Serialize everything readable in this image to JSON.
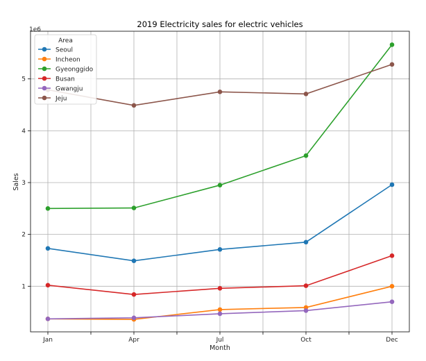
{
  "chart_data": {
    "type": "line",
    "title": "2019 Electricity sales for electric vehicles",
    "xlabel": "Month",
    "ylabel": "Sales",
    "offset_label": "1e6",
    "categories": [
      "Jan",
      "Apr",
      "Jul",
      "Oct",
      "Dec"
    ],
    "yticks": [
      1,
      2,
      3,
      4,
      5
    ],
    "ylim": [
      0.12,
      5.92
    ],
    "grid": true,
    "legend": {
      "title": "Area",
      "placement": "top-left"
    },
    "series": [
      {
        "name": "Seoul",
        "color": "#1f77b4",
        "values": [
          1.73,
          1.49,
          1.71,
          1.85,
          2.96
        ]
      },
      {
        "name": "Incheon",
        "color": "#ff7f0e",
        "values": [
          0.37,
          0.36,
          0.55,
          0.59,
          1.0
        ]
      },
      {
        "name": "Gyeonggido",
        "color": "#2ca02c",
        "values": [
          2.5,
          2.51,
          2.95,
          3.52,
          5.66
        ]
      },
      {
        "name": "Busan",
        "color": "#d62728",
        "values": [
          1.02,
          0.84,
          0.96,
          1.01,
          1.59
        ]
      },
      {
        "name": "Gwangju",
        "color": "#9467bd",
        "values": [
          0.37,
          0.39,
          0.47,
          0.53,
          0.7
        ]
      },
      {
        "name": "Jeju",
        "color": "#8c564b",
        "values": [
          4.79,
          4.49,
          4.75,
          4.71,
          5.28
        ]
      }
    ]
  }
}
